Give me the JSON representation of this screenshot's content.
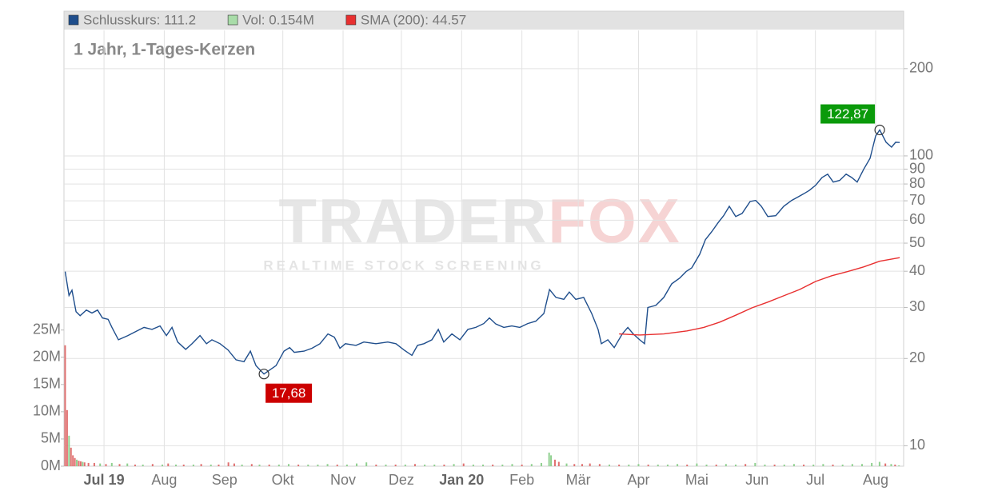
{
  "chart_data": [
    {
      "type": "line",
      "title": "1 Jahr, 1-Tages-Kerzen",
      "log_scale": true,
      "grid": true,
      "xlim": [
        -20.6,
        411.4
      ],
      "ylim": [
        8.5,
        271
      ],
      "xticks": [
        {
          "value": 0,
          "label": "Jul 19",
          "bold": true
        },
        {
          "value": 31,
          "label": "Aug"
        },
        {
          "value": 62,
          "label": "Sep"
        },
        {
          "value": 92,
          "label": "Okt"
        },
        {
          "value": 123,
          "label": "Nov"
        },
        {
          "value": 153,
          "label": "Dez"
        },
        {
          "value": 184,
          "label": "Jan 20",
          "bold": true
        },
        {
          "value": 215,
          "label": "Feb"
        },
        {
          "value": 244,
          "label": "Mär"
        },
        {
          "value": 275,
          "label": "Apr"
        },
        {
          "value": 305,
          "label": "Mai"
        },
        {
          "value": 336,
          "label": "Jun"
        },
        {
          "value": 366,
          "label": "Jul"
        },
        {
          "value": 397,
          "label": "Aug"
        }
      ],
      "yticks": [
        10,
        20,
        30,
        40,
        50,
        60,
        70,
        80,
        90,
        100,
        200
      ],
      "series": [
        {
          "name": "Schlusskurs: 111.2",
          "color": "#1f4e8c",
          "x": [
            -20,
            -18,
            -16.5,
            -14.4,
            -12.3,
            -9.1,
            -6.2,
            -3.3,
            -0.8,
            2.1,
            4.1,
            7.4,
            12.3,
            16.5,
            20.6,
            24.7,
            28.8,
            32.1,
            35,
            37.9,
            42,
            45.3,
            49.4,
            52.7,
            55.5,
            59.7,
            63.8,
            67.9,
            72,
            75.3,
            78.2,
            82.3,
            88.5,
            92.6,
            95.5,
            97.9,
            102.9,
            107,
            111.1,
            115.2,
            118.5,
            121.4,
            124.2,
            129.6,
            133.7,
            139.9,
            146,
            150.2,
            154.3,
            158.4,
            161.3,
            164.6,
            168.7,
            172,
            174.8,
            179,
            183.1,
            187.2,
            191.3,
            195.4,
            198.3,
            201.6,
            205.7,
            209.8,
            213.9,
            218,
            222.2,
            226.3,
            229.2,
            232.5,
            236.6,
            239.4,
            242.7,
            246.8,
            250.9,
            254.2,
            255.9,
            259.2,
            262.5,
            266.6,
            269.5,
            272.3,
            275.6,
            278.1,
            279.8,
            283.9,
            288,
            292.1,
            296.2,
            299.5,
            302.4,
            306.5,
            309.4,
            312.7,
            316,
            318.8,
            321.7,
            325,
            328.3,
            332.4,
            335.3,
            338.2,
            341.5,
            345.6,
            349.7,
            353.8,
            357.1,
            360,
            362.9,
            366.2,
            369.4,
            372.3,
            375.2,
            378.5,
            381.8,
            384.7,
            387.5,
            390.8,
            394.1,
            397,
            399.1,
            402.4,
            405.2,
            407.3,
            409.4
          ],
          "values": [
            39.9,
            33,
            34.4,
            29,
            28.1,
            29.4,
            28.7,
            29.4,
            27.6,
            27.3,
            25.6,
            23.2,
            24,
            24.8,
            25.6,
            25.2,
            25.9,
            24,
            25.6,
            22.8,
            21.5,
            22.5,
            24,
            22.5,
            23.2,
            22.5,
            21.4,
            19.8,
            19.5,
            21.2,
            18.9,
            17.68,
            18.9,
            21.2,
            21.8,
            21,
            21.2,
            21.7,
            22.5,
            24.3,
            23.7,
            21.7,
            22.5,
            22.2,
            22.8,
            22.5,
            22.8,
            22.5,
            21.4,
            20.5,
            22.2,
            22.5,
            23.2,
            25.2,
            22.8,
            24.3,
            23.2,
            25.2,
            25.6,
            26.4,
            27.6,
            26.3,
            25.6,
            25.9,
            25.6,
            26.4,
            26.9,
            28.6,
            34.6,
            32.5,
            32,
            33.9,
            32,
            32.5,
            28.6,
            25.2,
            22.5,
            23.2,
            21.8,
            24.3,
            25.6,
            24.3,
            23.2,
            22.5,
            30,
            30.5,
            32.5,
            36.2,
            37.9,
            39.9,
            41.1,
            45.8,
            51.4,
            54.8,
            58.9,
            62.2,
            67,
            61.8,
            63.3,
            69.6,
            70.2,
            67,
            61.8,
            62.2,
            67,
            70.2,
            72.2,
            74,
            76,
            79.3,
            84.2,
            86.5,
            81.2,
            82.3,
            86.5,
            84.2,
            81.2,
            89.8,
            98.1,
            117.2,
            122.87,
            111.4,
            107.2,
            111.4,
            111.2
          ]
        },
        {
          "name": "SMA (200): 44.57",
          "color": "#e83030",
          "x": [
            265,
            275.6,
            288,
            300,
            308.6,
            316.8,
            325,
            333.3,
            341.5,
            349.7,
            357.9,
            366.2,
            374.4,
            382.6,
            390.8,
            399,
            409.4
          ],
          "values": [
            24.3,
            24.1,
            24.3,
            24.9,
            25.6,
            26.7,
            28.2,
            29.9,
            31.3,
            32.9,
            34.6,
            36.9,
            38.6,
            39.9,
            41.4,
            43.3,
            44.57
          ]
        }
      ],
      "annotations": [
        {
          "label": "122,87",
          "value": 122.87,
          "x": 399.1,
          "color": "#0a9a0a",
          "placement": "above-left"
        },
        {
          "label": "17,68",
          "value": 17.68,
          "x": 82.3,
          "color": "#cc0000",
          "placement": "below-right"
        }
      ],
      "watermark": {
        "parts": [
          "TRADER",
          "FOX"
        ],
        "tagline": "REALTIME STOCK SCREENING"
      }
    },
    {
      "type": "bar",
      "xlim": [
        -20.6,
        411.4
      ],
      "ylim": [
        0,
        80000000
      ],
      "yticks": [
        {
          "value": 0,
          "label": "0M"
        },
        {
          "value": 5000000,
          "label": "5M"
        },
        {
          "value": 10000000,
          "label": "10M"
        },
        {
          "value": 15000000,
          "label": "15M"
        },
        {
          "value": 20000000,
          "label": "20M"
        },
        {
          "value": 25000000,
          "label": "25M"
        }
      ],
      "series": [
        {
          "name": "Vol: 0.154M",
          "color": "#a8dca8",
          "x": [
            -20,
            -19,
            -18,
            -17,
            -16,
            -15,
            -14,
            -13,
            -12,
            -11,
            -10,
            -8,
            -5,
            -2,
            1,
            4,
            8,
            12,
            16,
            20,
            25,
            30,
            33,
            37,
            41,
            46,
            50,
            55,
            59,
            64,
            67,
            71,
            76,
            80,
            85,
            90,
            95,
            100,
            105,
            110,
            115,
            120,
            125,
            130,
            135,
            140,
            145,
            150,
            155,
            160,
            165,
            170,
            175,
            180,
            185,
            190,
            195,
            200,
            205,
            210,
            215,
            220,
            225,
            229,
            230,
            232,
            234,
            238,
            242,
            246,
            250,
            255,
            260,
            265,
            270,
            275,
            280,
            285,
            290,
            295,
            300,
            305,
            310,
            315,
            320,
            325,
            330,
            335,
            340,
            345,
            350,
            355,
            360,
            365,
            370,
            375,
            380,
            385,
            390,
            395,
            399,
            402,
            405,
            407,
            409
          ],
          "values": [
            22200000,
            10300000,
            5600000,
            3400000,
            2000000,
            1500000,
            1200000,
            1000000,
            900000,
            800000,
            700000,
            600000,
            600000,
            500000,
            400000,
            600000,
            400000,
            500000,
            300000,
            300000,
            400000,
            300000,
            500000,
            300000,
            300000,
            300000,
            400000,
            300000,
            300000,
            700000,
            500000,
            300000,
            400000,
            300000,
            300000,
            300000,
            400000,
            300000,
            300000,
            300000,
            400000,
            300000,
            300000,
            500000,
            700000,
            300000,
            300000,
            300000,
            300000,
            400000,
            300000,
            300000,
            300000,
            400000,
            500000,
            300000,
            300000,
            300000,
            300000,
            400000,
            300000,
            400000,
            600000,
            2500000,
            2000000,
            1200000,
            800000,
            500000,
            400000,
            400000,
            500000,
            400000,
            300000,
            300000,
            300000,
            400000,
            300000,
            300000,
            300000,
            400000,
            300000,
            500000,
            300000,
            300000,
            400000,
            300000,
            400000,
            600000,
            300000,
            300000,
            300000,
            400000,
            300000,
            300000,
            400000,
            300000,
            300000,
            400000,
            400000,
            600000,
            800000,
            500000,
            400000,
            300000,
            154000
          ],
          "colors": [
            "#e07070",
            "#e07070",
            "#8fd08f",
            "#e07070",
            "#e07070",
            "#e07070",
            "#8fd08f",
            "#e07070",
            "#e07070",
            "#8fd08f",
            "#e07070",
            "#e07070",
            "#e07070",
            "#8fd08f",
            "#e07070",
            "#8fd08f",
            "#e07070",
            "#8fd08f",
            "#e07070",
            "#8fd08f",
            "#e07070",
            "#8fd08f",
            "#e07070",
            "#8fd08f",
            "#e07070",
            "#8fd08f",
            "#e07070",
            "#8fd08f",
            "#e07070",
            "#e07070",
            "#e07070",
            "#8fd08f",
            "#e07070",
            "#8fd08f",
            "#e07070",
            "#8fd08f",
            "#8fd08f",
            "#e07070",
            "#8fd08f",
            "#8fd08f",
            "#8fd08f",
            "#e07070",
            "#8fd08f",
            "#8fd08f",
            "#8fd08f",
            "#e07070",
            "#8fd08f",
            "#e07070",
            "#8fd08f",
            "#e07070",
            "#8fd08f",
            "#8fd08f",
            "#e07070",
            "#8fd08f",
            "#e07070",
            "#8fd08f",
            "#8fd08f",
            "#e07070",
            "#8fd08f",
            "#8fd08f",
            "#e07070",
            "#8fd08f",
            "#8fd08f",
            "#8fd08f",
            "#8fd08f",
            "#e07070",
            "#e07070",
            "#8fd08f",
            "#e07070",
            "#e07070",
            "#e07070",
            "#e07070",
            "#8fd08f",
            "#e07070",
            "#8fd08f",
            "#8fd08f",
            "#e07070",
            "#8fd08f",
            "#8fd08f",
            "#8fd08f",
            "#e07070",
            "#8fd08f",
            "#8fd08f",
            "#e07070",
            "#8fd08f",
            "#8fd08f",
            "#e07070",
            "#8fd08f",
            "#8fd08f",
            "#e07070",
            "#8fd08f",
            "#8fd08f",
            "#e07070",
            "#8fd08f",
            "#8fd08f",
            "#e07070",
            "#8fd08f",
            "#8fd08f",
            "#8fd08f",
            "#8fd08f",
            "#8fd08f",
            "#e07070",
            "#8fd08f",
            "#e07070",
            "#8fd08f"
          ]
        }
      ]
    }
  ]
}
